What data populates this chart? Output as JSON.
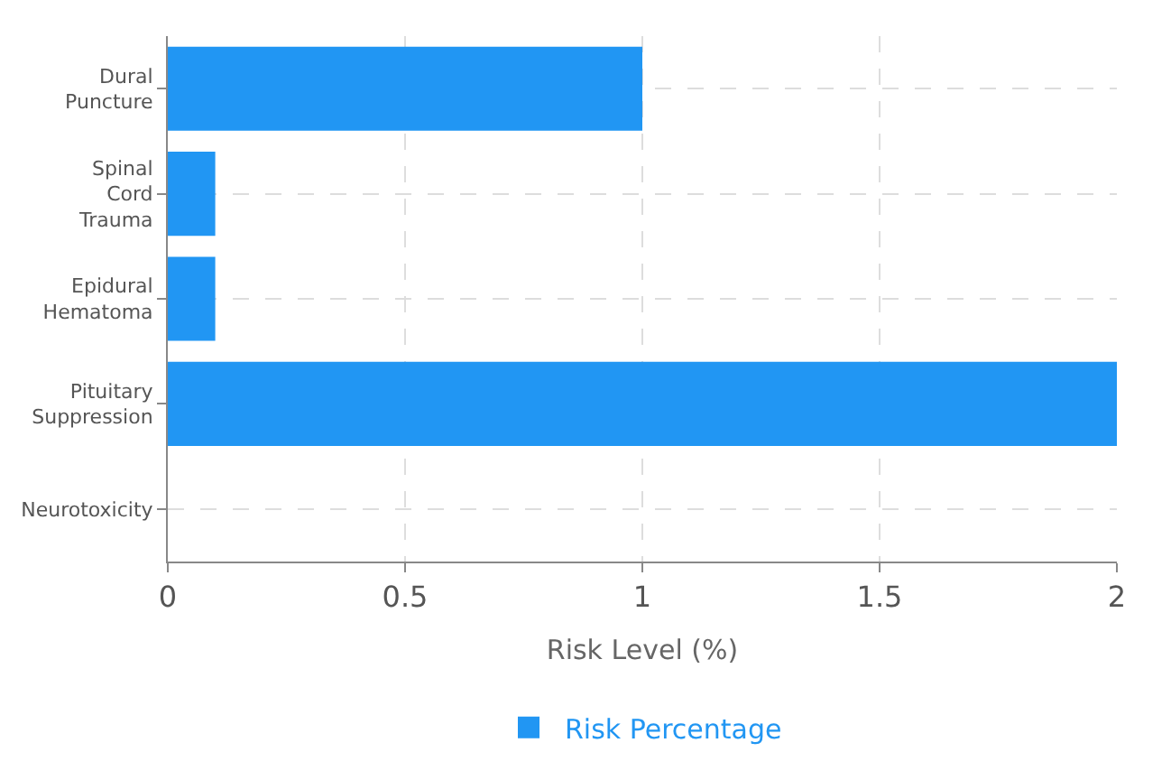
{
  "chart_data": {
    "type": "bar",
    "orientation": "horizontal",
    "xlabel": "Risk Level (%)",
    "categories": [
      "Dural Puncture",
      "Spinal Cord Trauma",
      "Epidural Hematoma",
      "Pituitary Suppression",
      "Neurotoxicity"
    ],
    "series": [
      {
        "name": "Risk Percentage",
        "color": "#2196f3",
        "values": [
          1,
          0.1,
          0.1,
          2,
          0
        ]
      }
    ],
    "xlim": [
      0,
      2
    ],
    "xticks": [
      0,
      0.5,
      1,
      1.5,
      2
    ],
    "grid": true,
    "legend": "bottom"
  }
}
